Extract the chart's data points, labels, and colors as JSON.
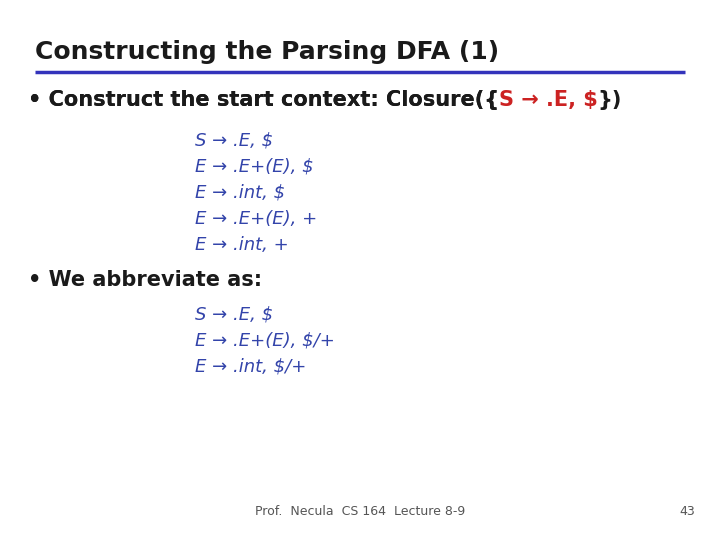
{
  "title": "Constructing the Parsing DFA (1)",
  "title_color": "#1a1a1a",
  "title_fontsize": 18,
  "line_color": "#3333bb",
  "bg_color": "#ffffff",
  "bullet_color": "#1a1a1a",
  "bullet_fontsize": 15,
  "red_color": "#cc2222",
  "items_color": "#3344aa",
  "items_fontsize": 13,
  "footer_text": "Prof.  Necula  CS 164  Lecture 8-9",
  "footer_page": "43",
  "footer_fontsize": 9,
  "footer_color": "#555555",
  "closure_items": [
    "S → .E, $",
    "E → .E+(E), $",
    "E → .int, $",
    "E → .E+(E), +",
    "E → .int, +"
  ],
  "abbrev_items": [
    "S → .E, $",
    "E → .E+(E), $/+",
    "E → .int, $/+"
  ]
}
